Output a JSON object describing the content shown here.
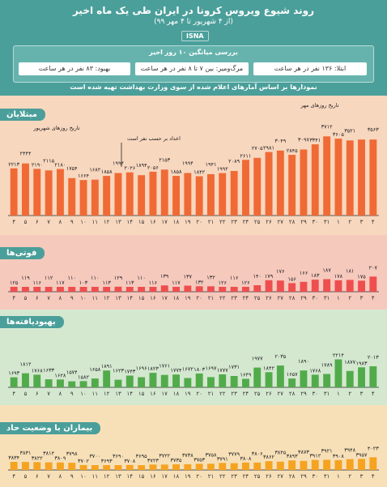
{
  "header": {
    "title": "روند شیوع ویروس کرونا در ایران طی یک ماه اخیر",
    "subtitle": "(از ۴ شهریور تا ۴ مهر ۹۹)",
    "brand": "ISNA"
  },
  "summary": {
    "title": "بررسی میانگین ۱۰ روز اخیر",
    "infection": "ابتلا: ۱۳۶ نفر در هر ساعت",
    "death": "مرگ‌ومیر: بین ۷ تا ۸ نفر در هر ساعت",
    "recovery": "بهبود: ۸۳ نفر در هر ساعت"
  },
  "note": "نمودارها بر اساس آمارهای اعلام شده از سوی وزارت بهداشت تهیه شده است",
  "colors": {
    "header": "#4b9f9a",
    "cases": "#f06a35",
    "deaths": "#ef4e4e",
    "recovered": "#52ab4a",
    "critical": "#f6a321"
  },
  "chart_data": [
    {
      "type": "bar",
      "name": "cases",
      "section_label": "مبتلایان",
      "x": [
        "۴",
        "۵",
        "۶",
        "۷",
        "۸",
        "۹",
        "۱۰",
        "۱۱",
        "۱۲",
        "۱۳",
        "۱۴",
        "۱۵",
        "۱۶",
        "۱۷",
        "۱۸",
        "۱۹",
        "۲۰",
        "۲۱",
        "۲۲",
        "۲۳",
        "۲۴",
        "۲۵",
        "۲۶",
        "۲۷",
        "۲۸",
        "۲۹",
        "۳۰",
        "۳۱",
        "۱",
        "۲",
        "۳",
        "۴"
      ],
      "values": [
        2213,
        2444,
        2190,
        2115,
        2180,
        1754,
        1664,
        1682,
        1858,
        1994,
        2026,
        1894,
        2056,
        2153,
        1858,
        1994,
        1842,
        1941,
        1992,
        2089,
        2611,
        2705,
        2981,
        3049,
        2845,
        3097,
        3341,
        3712,
        3605,
        3521,
        3563,
        3563
      ],
      "labels": [
        "۲۲۱۳",
        "۲۴۴۴",
        "۲۱۹۰",
        "۲۱۱۵",
        "۲۱۸۰",
        "۱۷۵۴",
        "۱۶۶۴",
        "۱۶۸۲",
        "۱۸۵۸",
        "۱۹۹۴",
        "۲۰۲۶",
        "۱۸۹۴",
        "۲۰۵۶",
        "۲۱۵۳",
        "۱۸۵۸",
        "۱۹۹۴",
        "۱۸۴۲",
        "۱۹۴۱",
        "۱۹۹۲",
        "۲۰۸۹",
        "۲۶۱۱",
        "۲۷۰۵",
        "۲۹۸۱",
        "۳۰۴۹",
        "۲۸۴۵",
        "۳۰۹۷",
        "۳۳۴۱",
        "۳۷۱۲",
        "۳۶۰۵",
        "۳۵۲۱",
        "",
        "۳۵۶۳"
      ],
      "annotations": [
        "تاریخ روزهای شهریور",
        "اعداد بر حسب نفر است",
        "تاریخ روزهای مهر"
      ]
    },
    {
      "type": "bar",
      "name": "deaths",
      "section_label": "فوتی‌ها",
      "x": [
        "۴",
        "۵",
        "۶",
        "۷",
        "۸",
        "۹",
        "۱۰",
        "۱۱",
        "۱۲",
        "۱۳",
        "۱۴",
        "۱۵",
        "۱۶",
        "۱۷",
        "۱۸",
        "۱۹",
        "۲۰",
        "۲۱",
        "۲۲",
        "۲۳",
        "۲۴",
        "۲۵",
        "۲۶",
        "۲۷",
        "۲۸",
        "۲۹",
        "۳۰",
        "۳۱",
        "۱",
        "۲",
        "۳",
        "۴"
      ],
      "values": [
        125,
        119,
        116,
        112,
        117,
        110,
        103,
        110,
        113,
        129,
        113,
        110,
        116,
        139,
        117,
        137,
        132,
        132,
        126,
        116,
        126,
        140,
        179,
        176,
        156,
        166,
        183,
        187,
        178,
        181,
        175,
        207
      ],
      "labels": [
        "۱۲۵",
        "۱۱۹",
        "۱۱۶",
        "۱۱۲",
        "۱۱۷",
        "۱۱۰",
        "۱۰۳",
        "۱۱۰",
        "۱۱۳",
        "۱۲۹",
        "۱۱۳",
        "۱۱۰",
        "۱۱۶",
        "۱۳۹",
        "۱۱۷",
        "۱۳۷",
        "۱۳۲",
        "۱۳۲",
        "۱۲۶",
        "۱۱۶",
        "۱۲۶",
        "۱۴۰",
        "۱۷۹",
        "۱۷۶",
        "۱۵۶",
        "۱۶۶",
        "۱۸۳",
        "۱۸۷",
        "۱۷۸",
        "۱۸۱",
        "۱۷۵",
        "۲۰۷"
      ]
    },
    {
      "type": "bar",
      "name": "recovered",
      "section_label": "بهبودیافته‌ها",
      "x": [
        "۴",
        "۵",
        "۶",
        "۷",
        "۸",
        "۹",
        "۱۰",
        "۱۱",
        "۱۲",
        "۱۳",
        "۱۴",
        "۱۵",
        "۱۶",
        "۱۷",
        "۱۸",
        "۱۹",
        "۲۰",
        "۲۱",
        "۲۲",
        "۲۳",
        "۲۴",
        "۲۵",
        "۲۶",
        "۲۷",
        "۲۸",
        "۲۹",
        "۳۰",
        "۳۱",
        "۱",
        "۲",
        "۳",
        "۴"
      ],
      "values": [
        1693,
        1812,
        1768,
        1633,
        1628,
        1574,
        1582,
        1658,
        1891,
        1623,
        1743,
        1696,
        1823,
        1761,
        1774,
        1672,
        1803,
        1697,
        1777,
        1731,
        1649,
        1977,
        1842,
        2035,
        1657,
        1890,
        1768,
        1789,
        2214,
        1877,
        1983,
        2013
      ],
      "labels": [
        "۱۶۹۳",
        "۱۸۱۲",
        "۱۷۶۸",
        "۱۶۳۳",
        "۱۶۲۸",
        "۱۵۷۴",
        "۱۵۸۲",
        "۱۶۵۸",
        "۱۸۹۱",
        "۱۶۲۳",
        "۱۷۴۳",
        "۱۶۹۶",
        "۱۸۲۳",
        "۱۷۶۱",
        "۱۷۷۴",
        "۱۶۷۲",
        "۱۸۰۳",
        "۱۶۹۷",
        "۱۷۷۷",
        "۱۷۳۱",
        "۱۶۴۹",
        "۱۹۷۷",
        "۱۸۴۲",
        "۲۰۳۵",
        "۱۶۵۷",
        "۱۸۹۰",
        "۱۷۶۸",
        "۱۷۸۹",
        "۲۲۱۴",
        "۱۸۷۷",
        "۱۹۸۳",
        "۲۰۱۳"
      ]
    },
    {
      "type": "bar",
      "name": "critical",
      "section_label": "بیماران با وضعیت حاد",
      "x": [
        "۴",
        "۵",
        "۶",
        "۷",
        "۸",
        "۹",
        "۱۰",
        "۱۱",
        "۱۲",
        "۱۳",
        "۱۴",
        "۱۵",
        "۱۶",
        "۱۷",
        "۱۸",
        "۱۹",
        "۲۰",
        "۲۱",
        "۲۲",
        "۲۳",
        "۲۴",
        "۲۵",
        "۲۶",
        "۲۷",
        "۲۸",
        "۲۹",
        "۳۰",
        "۳۱",
        "۱",
        "۲",
        "۳",
        "۴"
      ],
      "values": [
        3834,
        3831,
        3822,
        3814,
        3809,
        3798,
        3702,
        3700,
        3693,
        3690,
        3708,
        3695,
        3723,
        3722,
        3735,
        3738,
        3753,
        3758,
        3791,
        3779,
        3808,
        3806,
        3862,
        3845,
        3893,
        3873,
        3912,
        3921,
        3908,
        3948,
        3957,
        4023
      ],
      "labels": [
        "۳۸۳۴",
        "۳۸۳۱",
        "۳۸۲۲",
        "۳۸۱۴",
        "۳۸۰۹",
        "۳۷۹۸",
        "۳۷۰۲",
        "۳۷۰۰",
        "۳۶۹۳",
        "۳۶۹۰",
        "۳۷۰۸",
        "۳۶۹۵",
        "۳۷۲۳",
        "۳۷۲۲",
        "۳۷۳۵",
        "۳۷۳۸",
        "۳۷۵۳",
        "۳۷۵۸",
        "۳۷۹۱",
        "۳۷۷۹",
        "۳۸۰۸",
        "۳۸۰۶",
        "۳۸۶۲",
        "۳۸۴۵",
        "۳۸۹۳",
        "۳۸۷۳",
        "۳۹۱۲",
        "۳۹۲۱",
        "۳۹۰۸",
        "۳۹۴۸",
        "۳۹۵۷",
        "۴۰۲۳"
      ]
    }
  ]
}
